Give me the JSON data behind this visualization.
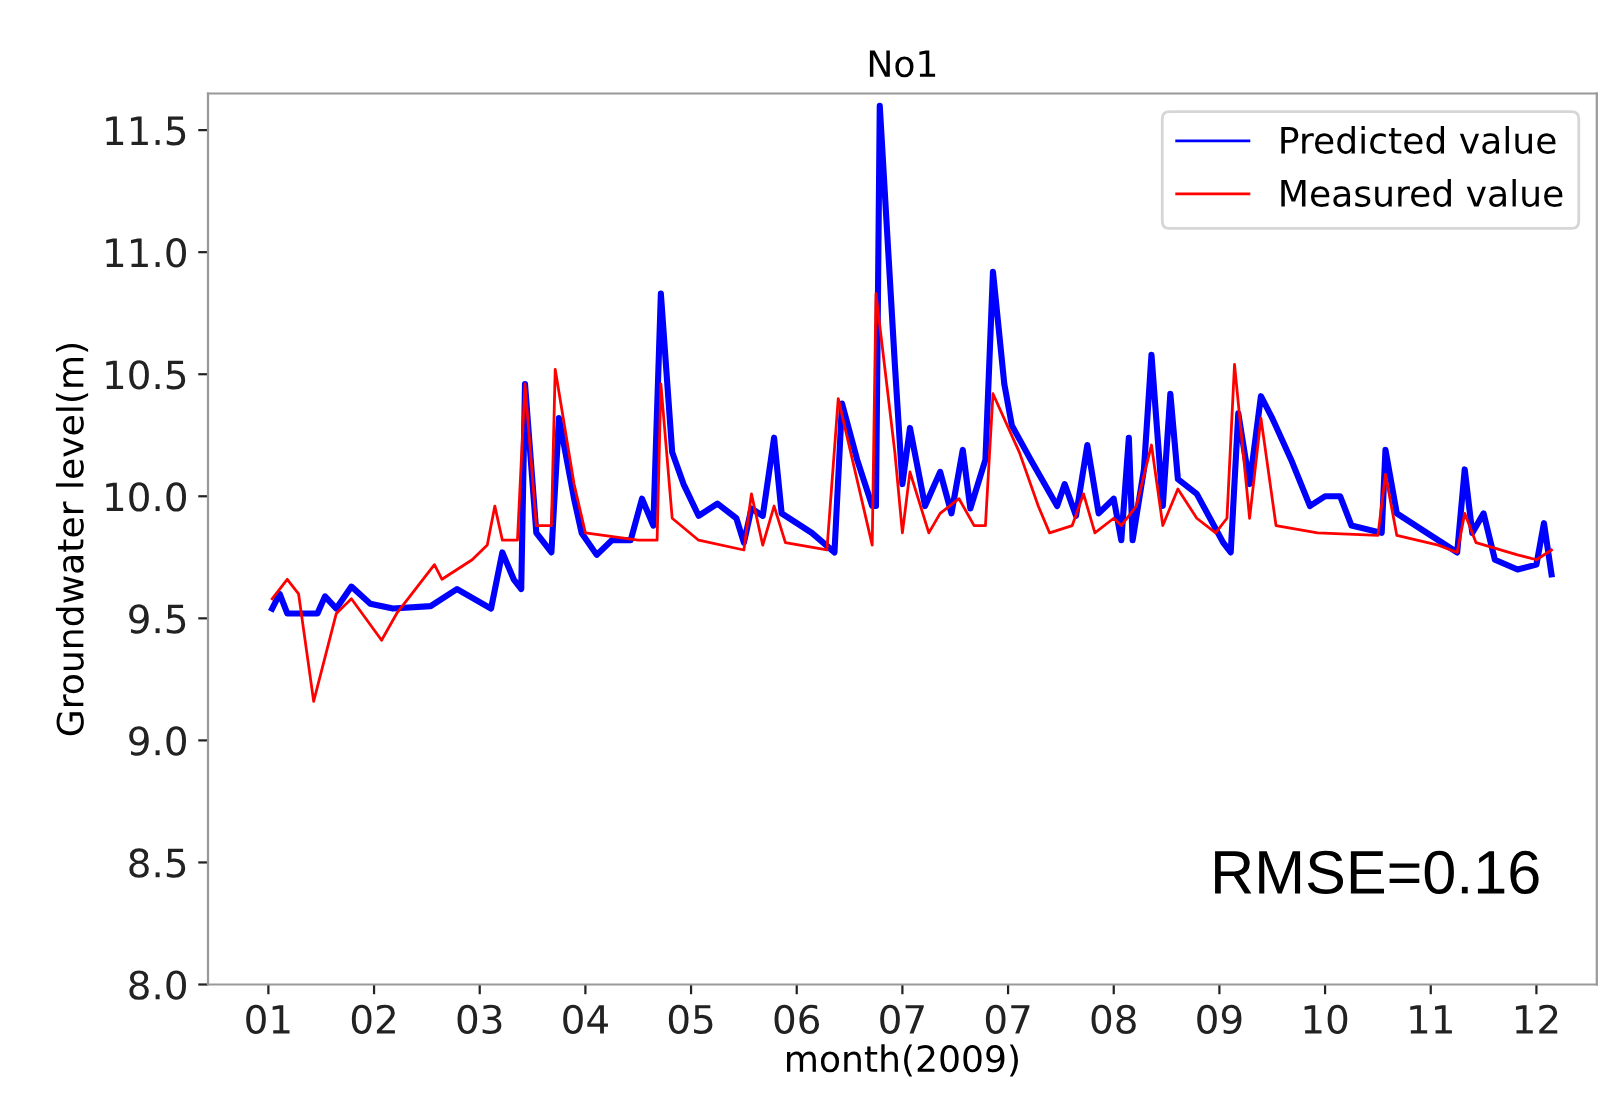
{
  "chart_data": {
    "type": "line",
    "title": "No1",
    "xlabel": "month(2009)",
    "ylabel": "Groundwater level(m)",
    "annotations": [
      "RMSE=0.16"
    ],
    "xlim": [
      "2008-12-30",
      "2010-01-02"
    ],
    "ylim": [
      8.0,
      11.65
    ],
    "xticks": [
      {
        "value": "2009-01-15",
        "label": "01"
      },
      {
        "value": "2009-02-12",
        "label": "02"
      },
      {
        "value": "2009-03-12",
        "label": "03"
      },
      {
        "value": "2009-04-09",
        "label": "04"
      },
      {
        "value": "2009-05-07",
        "label": "05"
      },
      {
        "value": "2009-06-04",
        "label": "06"
      },
      {
        "value": "2009-07-02",
        "label": "07"
      },
      {
        "value": "2009-07-30",
        "label": "07"
      },
      {
        "value": "2009-08-27",
        "label": "08"
      },
      {
        "value": "2009-09-24",
        "label": "09"
      },
      {
        "value": "2009-10-22",
        "label": "10"
      },
      {
        "value": "2009-11-19",
        "label": "11"
      },
      {
        "value": "2009-12-17",
        "label": "12"
      }
    ],
    "yticks": [
      {
        "value": 8.0,
        "label": "8.0"
      },
      {
        "value": 8.5,
        "label": "8.5"
      },
      {
        "value": 9.0,
        "label": "9.0"
      },
      {
        "value": 9.5,
        "label": "9.5"
      },
      {
        "value": 10.0,
        "label": "10.0"
      },
      {
        "value": 10.5,
        "label": "10.5"
      },
      {
        "value": 11.0,
        "label": "11.0"
      },
      {
        "value": 11.5,
        "label": "11.5"
      }
    ],
    "grid": false,
    "legend": "top right",
    "marker": "none",
    "line_style": "solid",
    "series": [
      {
        "name": "Predicted value",
        "color": "#0000ff",
        "x": [
          "2009-01-16",
          "2009-01-18",
          "2009-01-20",
          "2009-01-28",
          "2009-01-30",
          "2009-02-02",
          "2009-02-06",
          "2009-02-11",
          "2009-02-17",
          "2009-02-27",
          "2009-03-06",
          "2009-03-15",
          "2009-03-18",
          "2009-03-21",
          "2009-03-23",
          "2009-03-24",
          "2009-03-27",
          "2009-03-31",
          "2009-04-02",
          "2009-04-06",
          "2009-04-08",
          "2009-04-12",
          "2009-04-16",
          "2009-04-21",
          "2009-04-24",
          "2009-04-27",
          "2009-04-29",
          "2009-05-02",
          "2009-05-05",
          "2009-05-09",
          "2009-05-14",
          "2009-05-19",
          "2009-05-21",
          "2009-05-23",
          "2009-05-26",
          "2009-05-29",
          "2009-05-31",
          "2009-06-08",
          "2009-06-14",
          "2009-06-16",
          "2009-06-20",
          "2009-06-24",
          "2009-06-25",
          "2009-06-26",
          "2009-06-30",
          "2009-07-02",
          "2009-07-04",
          "2009-07-08",
          "2009-07-12",
          "2009-07-15",
          "2009-07-18",
          "2009-07-20",
          "2009-07-24",
          "2009-07-26",
          "2009-07-29",
          "2009-07-31",
          "2009-08-05",
          "2009-08-12",
          "2009-08-14",
          "2009-08-17",
          "2009-08-20",
          "2009-08-23",
          "2009-08-27",
          "2009-08-29",
          "2009-08-31",
          "2009-09-01",
          "2009-09-04",
          "2009-09-06",
          "2009-09-09",
          "2009-09-11",
          "2009-09-13",
          "2009-09-18",
          "2009-09-25",
          "2009-09-27",
          "2009-09-29",
          "2009-10-02",
          "2009-10-05",
          "2009-10-08",
          "2009-10-13",
          "2009-10-18",
          "2009-10-22",
          "2009-10-26",
          "2009-10-29",
          "2009-11-06",
          "2009-11-07",
          "2009-11-10",
          "2009-11-19",
          "2009-11-26",
          "2009-11-28",
          "2009-11-30",
          "2009-12-03",
          "2009-12-06",
          "2009-12-12",
          "2009-12-17",
          "2009-12-19",
          "2009-12-21"
        ],
        "values": [
          9.54,
          9.6,
          9.52,
          9.52,
          9.59,
          9.54,
          9.63,
          9.56,
          9.54,
          9.55,
          9.62,
          9.54,
          9.77,
          9.66,
          9.62,
          10.46,
          9.85,
          9.77,
          10.32,
          9.99,
          9.85,
          9.76,
          9.82,
          9.82,
          9.99,
          9.88,
          10.83,
          10.18,
          10.05,
          9.92,
          9.97,
          9.91,
          9.81,
          9.95,
          9.92,
          10.24,
          9.93,
          9.85,
          9.77,
          10.38,
          10.15,
          9.96,
          9.96,
          11.6,
          10.54,
          10.05,
          10.28,
          9.96,
          10.1,
          9.93,
          10.19,
          9.95,
          10.15,
          10.92,
          10.46,
          10.29,
          10.15,
          9.96,
          10.05,
          9.92,
          10.21,
          9.93,
          9.99,
          9.82,
          10.24,
          9.82,
          10.11,
          10.58,
          9.96,
          10.42,
          10.07,
          10.01,
          9.81,
          9.77,
          10.34,
          10.05,
          10.41,
          10.32,
          10.15,
          9.96,
          10.0,
          10.0,
          9.88,
          9.85,
          10.19,
          9.93,
          9.84,
          9.77,
          10.11,
          9.85,
          9.93,
          9.74,
          9.7,
          9.72,
          9.89,
          9.68
        ]
      },
      {
        "name": "Measured value",
        "color": "#ff0000",
        "x": [
          "2009-01-16",
          "2009-01-20",
          "2009-01-23",
          "2009-01-27",
          "2009-02-02",
          "2009-02-06",
          "2009-02-14",
          "2009-02-18",
          "2009-02-28",
          "2009-03-02",
          "2009-03-10",
          "2009-03-14",
          "2009-03-16",
          "2009-03-18",
          "2009-03-22",
          "2009-03-24",
          "2009-03-27",
          "2009-03-31",
          "2009-04-01",
          "2009-04-06",
          "2009-04-09",
          "2009-04-23",
          "2009-04-28",
          "2009-04-29",
          "2009-05-02",
          "2009-05-09",
          "2009-05-21",
          "2009-05-23",
          "2009-05-26",
          "2009-05-29",
          "2009-06-01",
          "2009-06-12",
          "2009-06-15",
          "2009-06-24",
          "2009-06-25",
          "2009-06-30",
          "2009-07-02",
          "2009-07-04",
          "2009-07-09",
          "2009-07-12",
          "2009-07-17",
          "2009-07-21",
          "2009-07-24",
          "2009-07-26",
          "2009-08-02",
          "2009-08-07",
          "2009-08-10",
          "2009-08-16",
          "2009-08-19",
          "2009-08-22",
          "2009-08-27",
          "2009-08-29",
          "2009-09-02",
          "2009-09-06",
          "2009-09-09",
          "2009-09-13",
          "2009-09-18",
          "2009-09-23",
          "2009-09-26",
          "2009-09-28",
          "2009-10-02",
          "2009-10-05",
          "2009-10-09",
          "2009-10-20",
          "2009-11-05",
          "2009-11-07",
          "2009-11-10",
          "2009-11-21",
          "2009-11-26",
          "2009-11-28",
          "2009-12-01",
          "2009-12-12",
          "2009-12-17",
          "2009-12-21"
        ],
        "values": [
          9.58,
          9.66,
          9.6,
          9.16,
          9.52,
          9.58,
          9.41,
          9.52,
          9.72,
          9.66,
          9.74,
          9.8,
          9.96,
          9.82,
          9.82,
          10.46,
          9.88,
          9.88,
          10.52,
          10.05,
          9.85,
          9.82,
          9.82,
          10.46,
          9.91,
          9.82,
          9.78,
          10.01,
          9.8,
          9.96,
          9.81,
          9.78,
          10.4,
          9.8,
          10.83,
          10.18,
          9.85,
          10.1,
          9.85,
          9.93,
          9.99,
          9.88,
          9.88,
          10.42,
          10.18,
          9.96,
          9.85,
          9.88,
          10.01,
          9.85,
          9.91,
          9.88,
          9.96,
          10.21,
          9.88,
          10.03,
          9.91,
          9.85,
          9.91,
          10.54,
          9.91,
          10.32,
          9.88,
          9.85,
          9.84,
          10.09,
          9.84,
          9.8,
          9.77,
          9.93,
          9.81,
          9.76,
          9.74,
          9.78
        ]
      }
    ]
  }
}
